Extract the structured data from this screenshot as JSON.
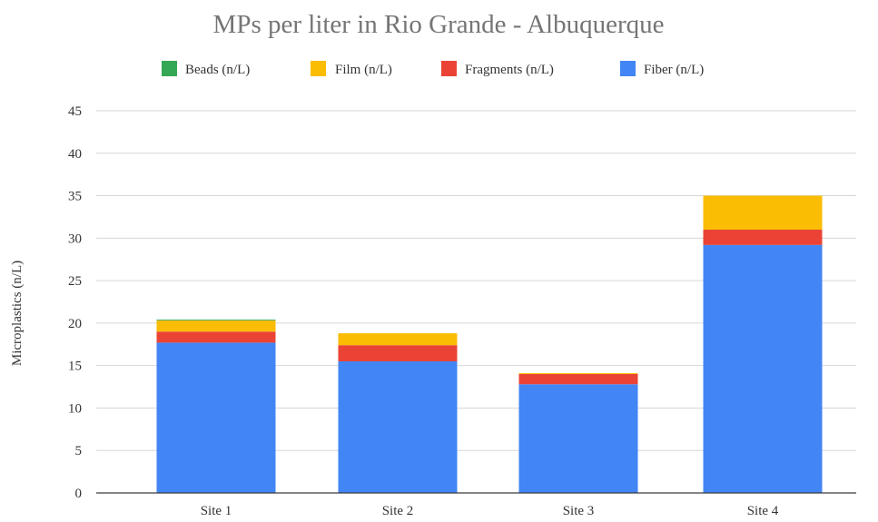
{
  "chart_data": {
    "type": "bar",
    "stacked": true,
    "title": "MPs per liter in Rio Grande - Albuquerque",
    "xlabel": "",
    "ylabel": "Microplastics (n/L)",
    "categories": [
      "Site 1",
      "Site 2",
      "Site 3",
      "Site 4"
    ],
    "ylim": [
      0,
      45
    ],
    "yticks": [
      0,
      5,
      10,
      15,
      20,
      25,
      30,
      35,
      40,
      45
    ],
    "grid": true,
    "legend_position": "top",
    "legend_order": [
      "Beads (n/L)",
      "Film (n/L)",
      "Fragments (n/L)",
      "Fiber (n/L)"
    ],
    "series": [
      {
        "name": "Fiber (n/L)",
        "color": "#4285f4",
        "values": [
          17.7,
          15.5,
          12.8,
          29.2
        ]
      },
      {
        "name": "Fragments (n/L)",
        "color": "#ea4335",
        "values": [
          1.3,
          1.9,
          1.2,
          1.8
        ]
      },
      {
        "name": "Film (n/L)",
        "color": "#fbbc04",
        "values": [
          1.3,
          1.4,
          0.1,
          4.0
        ]
      },
      {
        "name": "Beads (n/L)",
        "color": "#34a853",
        "values": [
          0.1,
          0.0,
          0.0,
          0.0
        ]
      }
    ]
  }
}
